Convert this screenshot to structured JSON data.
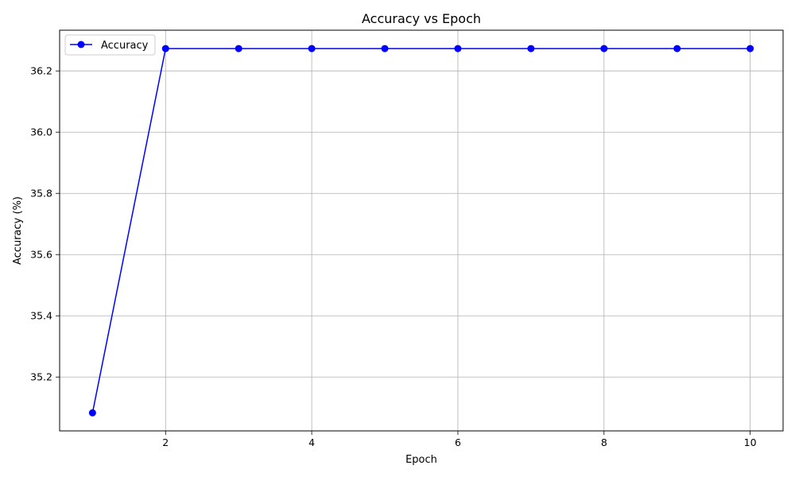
{
  "chart_data": {
    "type": "line",
    "title": "Accuracy vs Epoch",
    "xlabel": "Epoch",
    "ylabel": "Accuracy (%)",
    "x": [
      1,
      2,
      3,
      4,
      5,
      6,
      7,
      8,
      9,
      10
    ],
    "series": [
      {
        "name": "Accuracy",
        "color": "#0000ff",
        "marker": "circle",
        "values": [
          35.083,
          36.273,
          36.273,
          36.273,
          36.273,
          36.273,
          36.273,
          36.273,
          36.273,
          36.273
        ]
      }
    ],
    "xlim": [
      0.55,
      10.45
    ],
    "ylim": [
      35.024,
      36.333
    ],
    "xticks": [
      2,
      4,
      6,
      8,
      10
    ],
    "xtick_labels": [
      "2",
      "4",
      "6",
      "8",
      "10"
    ],
    "yticks": [
      35.2,
      35.4,
      35.6,
      35.8,
      36.0,
      36.2
    ],
    "ytick_labels": [
      "35.2",
      "35.4",
      "35.6",
      "35.8",
      "36.0",
      "36.2"
    ],
    "grid": true,
    "legend_position": "top-left"
  }
}
